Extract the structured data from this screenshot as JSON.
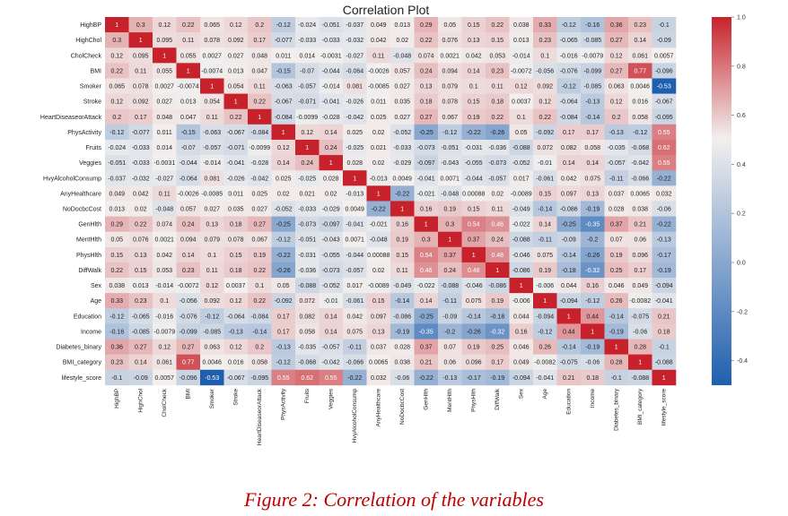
{
  "chart_data": {
    "type": "heatmap",
    "title": "Correlation Plot",
    "variables": [
      "HighBP",
      "HighChol",
      "CholCheck",
      "BMI",
      "Smoker",
      "Stroke",
      "HeartDiseaseorAttack",
      "PhysActivity",
      "Fruits",
      "Veggies",
      "HvyAlcoholConsump",
      "AnyHealthcare",
      "NoDocbcCost",
      "GenHlth",
      "MentHlth",
      "PhysHlth",
      "DiffWalk",
      "Sex",
      "Age",
      "Education",
      "Income",
      "Diabetes_binary",
      "BMI_category",
      "lifestyle_score"
    ],
    "values": [
      [
        1,
        0.3,
        0.12,
        0.22,
        0.065,
        0.12,
        0.2,
        -0.12,
        -0.024,
        -0.051,
        -0.037,
        0.049,
        0.013,
        0.29,
        0.05,
        0.15,
        0.22,
        0.038,
        0.33,
        -0.12,
        -0.16,
        0.36,
        0.23,
        -0.1
      ],
      [
        0.3,
        1,
        0.095,
        0.11,
        0.078,
        0.092,
        0.17,
        -0.077,
        -0.033,
        -0.033,
        -0.032,
        0.042,
        0.02,
        0.22,
        0.076,
        0.13,
        0.15,
        0.013,
        0.23,
        -0.065,
        -0.085,
        0.27,
        0.14,
        -0.09
      ],
      [
        0.12,
        0.095,
        1,
        0.055,
        0.0027,
        0.027,
        0.048,
        0.011,
        0.014,
        -0.0031,
        -0.027,
        0.11,
        -0.048,
        0.074,
        0.0021,
        0.042,
        0.053,
        -0.014,
        0.1,
        -0.016,
        -0.0079,
        0.12,
        0.061,
        0.0057
      ],
      [
        0.22,
        0.11,
        0.055,
        1,
        -0.0074,
        0.013,
        0.047,
        -0.15,
        -0.07,
        -0.044,
        -0.064,
        -0.0026,
        0.057,
        0.24,
        0.094,
        0.14,
        0.23,
        -0.0072,
        -0.056,
        -0.076,
        -0.099,
        0.27,
        0.77,
        -0.096
      ],
      [
        0.065,
        0.078,
        0.0027,
        -0.0074,
        1,
        0.054,
        0.11,
        -0.063,
        -0.057,
        -0.014,
        0.081,
        -0.0085,
        0.027,
        0.13,
        0.079,
        0.1,
        0.11,
        0.12,
        0.092,
        -0.12,
        -0.085,
        0.063,
        0.0046,
        -0.53
      ],
      [
        0.12,
        0.092,
        0.027,
        0.013,
        0.054,
        1,
        0.22,
        -0.067,
        -0.071,
        -0.041,
        -0.026,
        0.011,
        0.035,
        0.18,
        0.078,
        0.15,
        0.18,
        0.0037,
        0.12,
        -0.064,
        -0.13,
        0.12,
        0.016,
        -0.067
      ],
      [
        0.2,
        0.17,
        0.048,
        0.047,
        0.11,
        0.22,
        1,
        -0.084,
        -0.0099,
        -0.028,
        -0.042,
        0.025,
        0.027,
        0.27,
        0.067,
        0.19,
        0.22,
        0.1,
        0.22,
        -0.084,
        -0.14,
        0.2,
        0.058,
        -0.095
      ],
      [
        -0.12,
        -0.077,
        0.011,
        -0.15,
        -0.063,
        -0.067,
        -0.084,
        1,
        0.12,
        0.14,
        0.025,
        0.02,
        -0.052,
        -0.25,
        -0.12,
        -0.22,
        -0.26,
        0.05,
        -0.092,
        0.17,
        0.17,
        -0.13,
        -0.12,
        0.55
      ],
      [
        -0.024,
        -0.033,
        0.014,
        -0.07,
        -0.057,
        -0.071,
        -0.0099,
        0.12,
        1,
        0.24,
        -0.025,
        0.021,
        -0.033,
        -0.073,
        -0.051,
        -0.031,
        -0.036,
        -0.088,
        0.072,
        0.082,
        0.058,
        -0.035,
        -0.068,
        0.62
      ],
      [
        -0.051,
        -0.033,
        -0.0031,
        -0.044,
        -0.014,
        -0.041,
        -0.028,
        0.14,
        0.24,
        1,
        0.028,
        0.02,
        -0.029,
        -0.097,
        -0.043,
        -0.055,
        -0.073,
        -0.052,
        -0.01,
        0.14,
        0.14,
        -0.057,
        -0.042,
        0.55
      ],
      [
        -0.037,
        -0.032,
        -0.027,
        -0.064,
        0.081,
        -0.026,
        -0.042,
        0.025,
        -0.025,
        0.028,
        1,
        -0.013,
        0.0049,
        -0.041,
        0.0071,
        -0.044,
        -0.057,
        0.017,
        -0.061,
        0.042,
        0.075,
        -0.11,
        -0.066,
        -0.22
      ],
      [
        0.049,
        0.042,
        0.11,
        -0.0026,
        -0.0085,
        0.011,
        0.025,
        0.02,
        0.021,
        0.02,
        -0.013,
        1,
        -0.22,
        -0.021,
        -0.048,
        0.00088,
        0.02,
        -0.0089,
        0.15,
        0.097,
        0.13,
        0.037,
        0.0065,
        0.032
      ],
      [
        0.013,
        0.02,
        -0.048,
        0.057,
        0.027,
        0.035,
        0.027,
        -0.052,
        -0.033,
        -0.029,
        0.0049,
        -0.22,
        1,
        0.16,
        0.19,
        0.15,
        0.11,
        -0.049,
        -0.14,
        -0.086,
        -0.19,
        0.028,
        0.038,
        -0.06
      ],
      [
        0.29,
        0.22,
        0.074,
        0.24,
        0.13,
        0.18,
        0.27,
        -0.25,
        -0.073,
        -0.097,
        -0.041,
        -0.021,
        0.16,
        1,
        0.3,
        0.54,
        0.46,
        -0.022,
        0.14,
        -0.25,
        -0.35,
        0.37,
        0.21,
        -0.22
      ],
      [
        0.05,
        0.076,
        0.0021,
        0.094,
        0.079,
        0.078,
        0.067,
        -0.12,
        -0.051,
        -0.043,
        0.0071,
        -0.048,
        0.19,
        0.3,
        1,
        0.37,
        0.24,
        -0.088,
        -0.11,
        -0.09,
        -0.2,
        0.07,
        0.06,
        -0.13
      ],
      [
        0.15,
        0.13,
        0.042,
        0.14,
        0.1,
        0.15,
        0.19,
        -0.22,
        -0.031,
        -0.055,
        -0.044,
        0.00088,
        0.15,
        0.54,
        0.37,
        1,
        0.48,
        -0.046,
        0.075,
        -0.14,
        -0.26,
        0.19,
        0.096,
        -0.17
      ],
      [
        0.22,
        0.15,
        0.053,
        0.23,
        0.11,
        0.18,
        0.22,
        -0.26,
        -0.036,
        -0.073,
        -0.057,
        0.02,
        0.11,
        0.46,
        0.24,
        0.48,
        1,
        -0.086,
        0.19,
        -0.18,
        -0.32,
        0.25,
        0.17,
        -0.19
      ],
      [
        0.038,
        0.013,
        -0.014,
        -0.0072,
        0.12,
        0.0037,
        0.1,
        0.05,
        -0.088,
        -0.052,
        0.017,
        -0.0089,
        -0.049,
        -0.022,
        -0.088,
        -0.046,
        -0.086,
        1,
        -0.006,
        0.044,
        0.16,
        0.046,
        0.049,
        -0.094
      ],
      [
        0.33,
        0.23,
        0.1,
        -0.056,
        0.092,
        0.12,
        0.22,
        -0.092,
        0.072,
        -0.01,
        -0.061,
        0.15,
        -0.14,
        0.14,
        -0.11,
        0.075,
        0.19,
        -0.006,
        1,
        -0.094,
        -0.12,
        0.26,
        -0.0082,
        -0.041
      ],
      [
        -0.12,
        -0.065,
        -0.016,
        -0.076,
        -0.12,
        -0.064,
        -0.084,
        0.17,
        0.082,
        0.14,
        0.042,
        0.097,
        -0.086,
        -0.25,
        -0.09,
        -0.14,
        -0.18,
        0.044,
        -0.094,
        1,
        0.44,
        -0.14,
        -0.075,
        0.21
      ],
      [
        -0.16,
        -0.085,
        -0.0079,
        -0.099,
        -0.085,
        -0.13,
        -0.14,
        0.17,
        0.058,
        0.14,
        0.075,
        0.13,
        -0.19,
        -0.35,
        -0.2,
        -0.26,
        -0.32,
        0.16,
        -0.12,
        0.44,
        1,
        -0.19,
        -0.06,
        0.18
      ],
      [
        0.36,
        0.27,
        0.12,
        0.27,
        0.063,
        0.12,
        0.2,
        -0.13,
        -0.035,
        -0.057,
        -0.11,
        0.037,
        0.028,
        0.37,
        0.07,
        0.19,
        0.25,
        0.046,
        0.26,
        -0.14,
        -0.19,
        1,
        0.28,
        -0.1
      ],
      [
        0.23,
        0.14,
        0.061,
        0.77,
        0.0046,
        0.016,
        0.058,
        -0.12,
        -0.068,
        -0.042,
        -0.066,
        0.0065,
        0.038,
        0.21,
        0.06,
        0.096,
        0.17,
        0.049,
        -0.0082,
        -0.075,
        -0.06,
        0.28,
        1,
        -0.088
      ],
      [
        -0.1,
        -0.09,
        0.0057,
        -0.096,
        -0.53,
        -0.067,
        -0.095,
        0.55,
        0.62,
        0.55,
        -0.22,
        0.032,
        -0.06,
        -0.22,
        -0.13,
        -0.17,
        -0.19,
        -0.094,
        -0.041,
        0.21,
        0.18,
        -0.1,
        -0.088,
        1
      ]
    ],
    "colorbar": {
      "range": [
        -0.5,
        1.0
      ],
      "ticks": [
        "1.0",
        "0.8",
        "0.6",
        "0.4",
        "0.2",
        "0.0",
        "-0.2",
        "-0.4"
      ],
      "tick_values": [
        1.0,
        0.8,
        0.6,
        0.4,
        0.2,
        0.0,
        -0.2,
        -0.4
      ],
      "low_color": "#1f5faf",
      "mid_color": "#f2f0ef",
      "high_color": "#c7222b"
    },
    "xlabel": "",
    "ylabel": ""
  },
  "caption": "Figure 2: Correlation of the variables"
}
